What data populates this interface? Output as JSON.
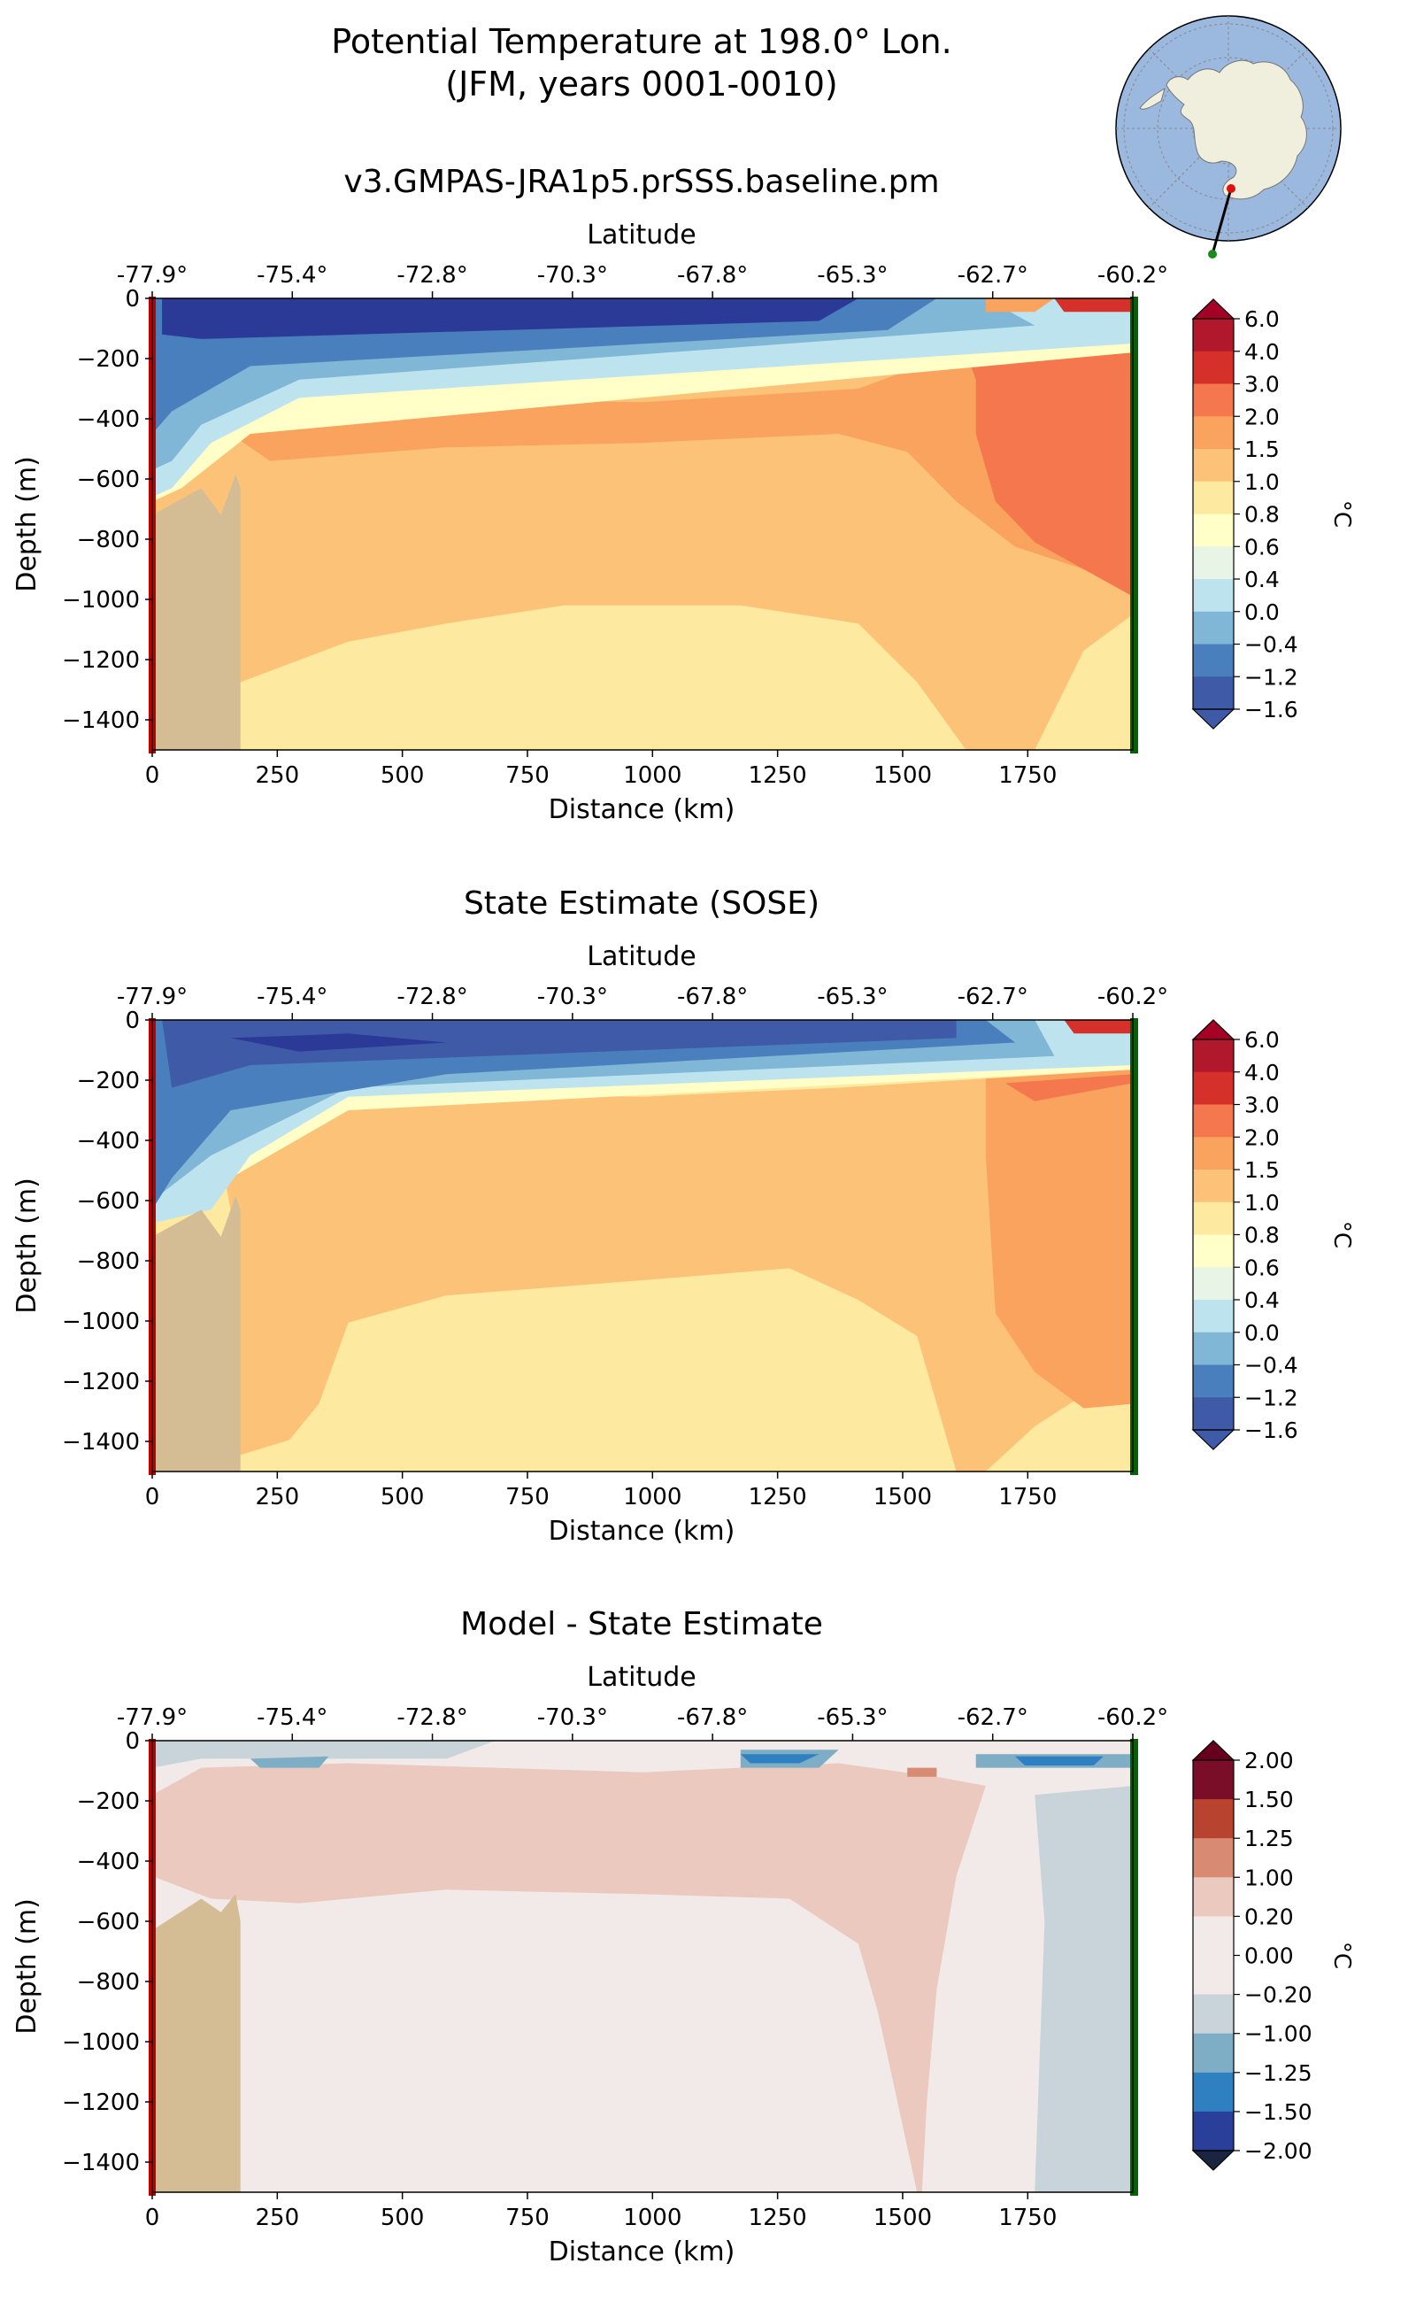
{
  "figure": {
    "title_line1": "Potential Temperature at 198.0° Lon.",
    "title_line2": "(JFM, years 0001-0010)"
  },
  "inset_map": {
    "ocean_color": "#9bb8de",
    "land_color": "#f0eedc",
    "start_marker_color": "#e01010",
    "end_marker_color": "#1a8a1a"
  },
  "colors": {
    "left_edge": "#c00000",
    "right_edge": "#006400",
    "land": "#d4bc94"
  },
  "chart_data": [
    {
      "type": "heatmap",
      "title": "v3.GMPAS-JRA1p5.prSSS.baseline.pm",
      "xlabel": "Distance (km)",
      "ylabel": "Depth (m)",
      "top_axis_label": "Latitude",
      "xlim": [
        0,
        1960
      ],
      "ylim": [
        -1500,
        0
      ],
      "xticks": [
        0,
        250,
        500,
        750,
        1000,
        1250,
        1500,
        1750
      ],
      "yticks": [
        0,
        -200,
        -400,
        -600,
        -800,
        -1000,
        -1200,
        -1400
      ],
      "xtick_labels": [
        "0",
        "250",
        "500",
        "750",
        "1000",
        "1250",
        "1500",
        "1750"
      ],
      "ytick_labels": [
        "0",
        "−200",
        "−400",
        "−600",
        "−800",
        "−1000",
        "−1200",
        "−1400"
      ],
      "lat_tick_labels": [
        "-77.9°",
        "-75.4°",
        "-72.8°",
        "-70.3°",
        "-67.8°",
        "-65.3°",
        "-62.7°",
        "-60.2°"
      ],
      "lat_tick_distance_km": [
        0,
        280,
        560,
        840,
        1120,
        1400,
        1680,
        1960
      ],
      "colorbar": {
        "unit": "°C",
        "levels": [
          "6.0",
          "4.0",
          "3.0",
          "2.0",
          "1.5",
          "1.0",
          "0.8",
          "0.6",
          "0.4",
          "0.0",
          "−0.4",
          "−1.2",
          "−1.6"
        ],
        "colors": [
          "#b2182b",
          "#d6302a",
          "#f4774e",
          "#f9a35e",
          "#fcc378",
          "#fee9a0",
          "#ffffc7",
          "#e8f4e6",
          "#bde3ee",
          "#80b6d6",
          "#4a7fbd",
          "#3f5ba8",
          "#2b3a96",
          "#a50026"
        ]
      }
    },
    {
      "type": "heatmap",
      "title": "State Estimate (SOSE)",
      "xlabel": "Distance (km)",
      "ylabel": "Depth (m)",
      "top_axis_label": "Latitude",
      "xlim": [
        0,
        1960
      ],
      "ylim": [
        -1500,
        0
      ],
      "xticks": [
        0,
        250,
        500,
        750,
        1000,
        1250,
        1500,
        1750
      ],
      "yticks": [
        0,
        -200,
        -400,
        -600,
        -800,
        -1000,
        -1200,
        -1400
      ],
      "xtick_labels": [
        "0",
        "250",
        "500",
        "750",
        "1000",
        "1250",
        "1500",
        "1750"
      ],
      "ytick_labels": [
        "0",
        "−200",
        "−400",
        "−600",
        "−800",
        "−1000",
        "−1200",
        "−1400"
      ],
      "lat_tick_labels": [
        "-77.9°",
        "-75.4°",
        "-72.8°",
        "-70.3°",
        "-67.8°",
        "-65.3°",
        "-62.7°",
        "-60.2°"
      ],
      "lat_tick_distance_km": [
        0,
        280,
        560,
        840,
        1120,
        1400,
        1680,
        1960
      ],
      "colorbar": {
        "unit": "°C",
        "levels": [
          "6.0",
          "4.0",
          "3.0",
          "2.0",
          "1.5",
          "1.0",
          "0.8",
          "0.6",
          "0.4",
          "0.0",
          "−0.4",
          "−1.2",
          "−1.6"
        ],
        "colors": [
          "#b2182b",
          "#d6302a",
          "#f4774e",
          "#f9a35e",
          "#fcc378",
          "#fee9a0",
          "#ffffc7",
          "#e8f4e6",
          "#bde3ee",
          "#80b6d6",
          "#4a7fbd",
          "#3f5ba8",
          "#2b3a96",
          "#a50026"
        ]
      }
    },
    {
      "type": "heatmap",
      "title": "Model - State Estimate",
      "xlabel": "Distance (km)",
      "ylabel": "Depth (m)",
      "top_axis_label": "Latitude",
      "xlim": [
        0,
        1960
      ],
      "ylim": [
        -1500,
        0
      ],
      "xticks": [
        0,
        250,
        500,
        750,
        1000,
        1250,
        1500,
        1750
      ],
      "yticks": [
        0,
        -200,
        -400,
        -600,
        -800,
        -1000,
        -1200,
        -1400
      ],
      "xtick_labels": [
        "0",
        "250",
        "500",
        "750",
        "1000",
        "1250",
        "1500",
        "1750"
      ],
      "ytick_labels": [
        "0",
        "−200",
        "−400",
        "−600",
        "−800",
        "−1000",
        "−1200",
        "−1400"
      ],
      "lat_tick_labels": [
        "-77.9°",
        "-75.4°",
        "-72.8°",
        "-70.3°",
        "-67.8°",
        "-65.3°",
        "-62.7°",
        "-60.2°"
      ],
      "lat_tick_distance_km": [
        0,
        280,
        560,
        840,
        1120,
        1400,
        1680,
        1960
      ],
      "colorbar": {
        "unit": "°C",
        "levels": [
          "2.00",
          "1.50",
          "1.25",
          "1.00",
          "0.20",
          "0.00",
          "−0.20",
          "−1.00",
          "−1.25",
          "−1.50",
          "−2.00"
        ],
        "colors": [
          "#7a0d28",
          "#b8442f",
          "#d88b72",
          "#ebc9bf",
          "#f1eae9",
          "#f1eae9",
          "#c8d3da",
          "#7eaec6",
          "#2f80c0",
          "#2a3f9a",
          "#67001f",
          "#1c2540"
        ]
      }
    }
  ]
}
